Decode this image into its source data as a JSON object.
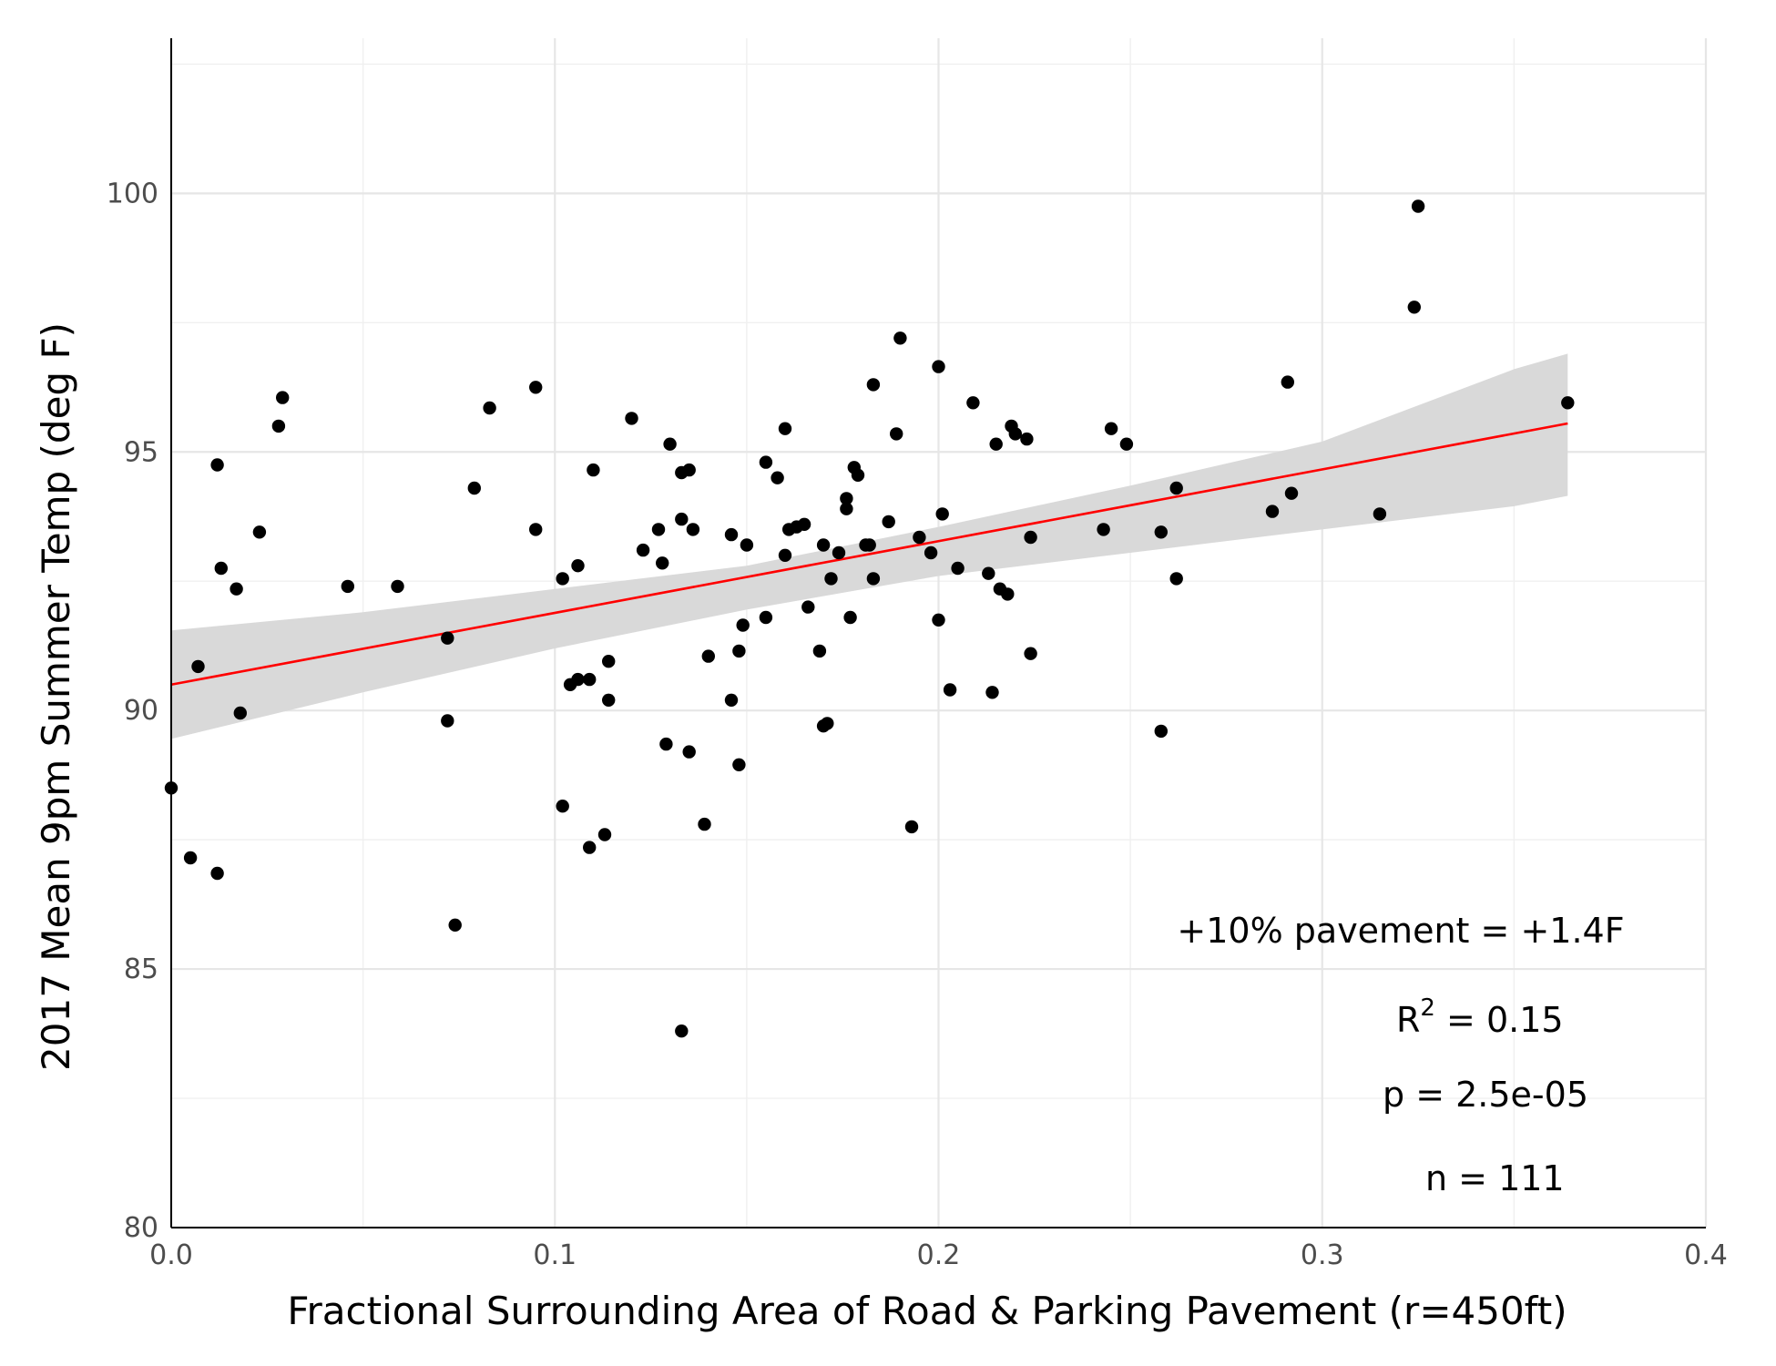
{
  "chart_data": {
    "type": "scatter",
    "xlabel": "Fractional Surrounding Area of Road & Parking Pavement (r=450ft)",
    "ylabel": "2017 Mean 9pm Summer Temp (deg F)",
    "xlim": [
      0.0,
      0.4
    ],
    "ylim": [
      80,
      103
    ],
    "xticks": [
      0.0,
      0.1,
      0.2,
      0.3,
      0.4
    ],
    "xtick_labels": [
      "0.0",
      "0.1",
      "0.2",
      "0.3",
      "0.4"
    ],
    "yticks": [
      80,
      85,
      90,
      95,
      100
    ],
    "ytick_labels": [
      "80",
      "85",
      "90",
      "95",
      "100"
    ],
    "grid": true,
    "point_color": "#000000",
    "fit_color": "#ff0000",
    "band_color": "#d9d9d9",
    "fit": {
      "x": [
        0.0,
        0.364
      ],
      "y": [
        90.5,
        95.55
      ]
    },
    "confidence_band": {
      "x": [
        0.0,
        0.05,
        0.1,
        0.15,
        0.2,
        0.25,
        0.3,
        0.35,
        0.364
      ],
      "lower": [
        89.45,
        90.35,
        91.2,
        91.95,
        92.6,
        93.05,
        93.5,
        93.95,
        94.15
      ],
      "upper": [
        91.55,
        91.9,
        92.35,
        92.8,
        93.55,
        94.35,
        95.2,
        96.6,
        96.9
      ]
    },
    "points": [
      [
        0.0,
        88.5
      ],
      [
        0.005,
        87.15
      ],
      [
        0.007,
        90.85
      ],
      [
        0.012,
        94.75
      ],
      [
        0.012,
        86.85
      ],
      [
        0.013,
        92.75
      ],
      [
        0.017,
        92.35
      ],
      [
        0.018,
        89.95
      ],
      [
        0.023,
        93.45
      ],
      [
        0.028,
        95.5
      ],
      [
        0.029,
        96.05
      ],
      [
        0.046,
        92.4
      ],
      [
        0.059,
        92.4
      ],
      [
        0.072,
        91.4
      ],
      [
        0.072,
        89.8
      ],
      [
        0.074,
        85.85
      ],
      [
        0.079,
        94.3
      ],
      [
        0.083,
        95.85
      ],
      [
        0.095,
        93.5
      ],
      [
        0.095,
        96.25
      ],
      [
        0.102,
        92.55
      ],
      [
        0.102,
        88.15
      ],
      [
        0.104,
        90.5
      ],
      [
        0.106,
        90.6
      ],
      [
        0.106,
        92.8
      ],
      [
        0.109,
        87.35
      ],
      [
        0.109,
        90.6
      ],
      [
        0.11,
        94.65
      ],
      [
        0.113,
        87.6
      ],
      [
        0.114,
        90.95
      ],
      [
        0.114,
        90.2
      ],
      [
        0.12,
        95.65
      ],
      [
        0.123,
        93.1
      ],
      [
        0.127,
        93.5
      ],
      [
        0.128,
        92.85
      ],
      [
        0.129,
        89.35
      ],
      [
        0.13,
        95.15
      ],
      [
        0.133,
        93.7
      ],
      [
        0.133,
        94.6
      ],
      [
        0.133,
        83.8
      ],
      [
        0.135,
        94.65
      ],
      [
        0.135,
        89.2
      ],
      [
        0.136,
        93.5
      ],
      [
        0.139,
        87.8
      ],
      [
        0.14,
        91.05
      ],
      [
        0.146,
        93.4
      ],
      [
        0.146,
        90.2
      ],
      [
        0.148,
        91.15
      ],
      [
        0.148,
        88.95
      ],
      [
        0.149,
        91.65
      ],
      [
        0.15,
        93.2
      ],
      [
        0.155,
        94.8
      ],
      [
        0.155,
        91.8
      ],
      [
        0.158,
        94.5
      ],
      [
        0.16,
        95.45
      ],
      [
        0.16,
        93.0
      ],
      [
        0.161,
        93.5
      ],
      [
        0.163,
        93.55
      ],
      [
        0.165,
        93.6
      ],
      [
        0.166,
        92.0
      ],
      [
        0.169,
        91.15
      ],
      [
        0.17,
        93.2
      ],
      [
        0.17,
        89.7
      ],
      [
        0.171,
        89.75
      ],
      [
        0.172,
        92.55
      ],
      [
        0.174,
        93.05
      ],
      [
        0.176,
        94.1
      ],
      [
        0.176,
        93.9
      ],
      [
        0.177,
        91.8
      ],
      [
        0.178,
        94.7
      ],
      [
        0.179,
        94.55
      ],
      [
        0.181,
        93.2
      ],
      [
        0.182,
        93.2
      ],
      [
        0.183,
        92.55
      ],
      [
        0.183,
        96.3
      ],
      [
        0.187,
        93.65
      ],
      [
        0.189,
        95.35
      ],
      [
        0.19,
        97.2
      ],
      [
        0.193,
        87.75
      ],
      [
        0.195,
        93.35
      ],
      [
        0.198,
        93.05
      ],
      [
        0.2,
        91.75
      ],
      [
        0.2,
        96.65
      ],
      [
        0.201,
        93.8
      ],
      [
        0.203,
        90.4
      ],
      [
        0.205,
        92.75
      ],
      [
        0.209,
        95.95
      ],
      [
        0.213,
        92.65
      ],
      [
        0.214,
        90.35
      ],
      [
        0.215,
        95.15
      ],
      [
        0.216,
        92.35
      ],
      [
        0.218,
        92.25
      ],
      [
        0.219,
        95.5
      ],
      [
        0.22,
        95.35
      ],
      [
        0.223,
        95.25
      ],
      [
        0.224,
        93.35
      ],
      [
        0.224,
        91.1
      ],
      [
        0.243,
        93.5
      ],
      [
        0.245,
        95.45
      ],
      [
        0.249,
        95.15
      ],
      [
        0.258,
        93.45
      ],
      [
        0.258,
        89.6
      ],
      [
        0.262,
        94.3
      ],
      [
        0.262,
        92.55
      ],
      [
        0.287,
        93.85
      ],
      [
        0.291,
        96.35
      ],
      [
        0.292,
        94.2
      ],
      [
        0.315,
        93.8
      ],
      [
        0.324,
        97.8
      ],
      [
        0.325,
        99.75
      ],
      [
        0.364,
        95.95
      ]
    ]
  },
  "annotations": {
    "slope_text": "+10% pavement = +1.4F",
    "r2_label": "R",
    "r2_sup": "2",
    "r2_value": " = 0.15",
    "p_text": "p = 2.5e-05",
    "n_text": "n = 111"
  }
}
